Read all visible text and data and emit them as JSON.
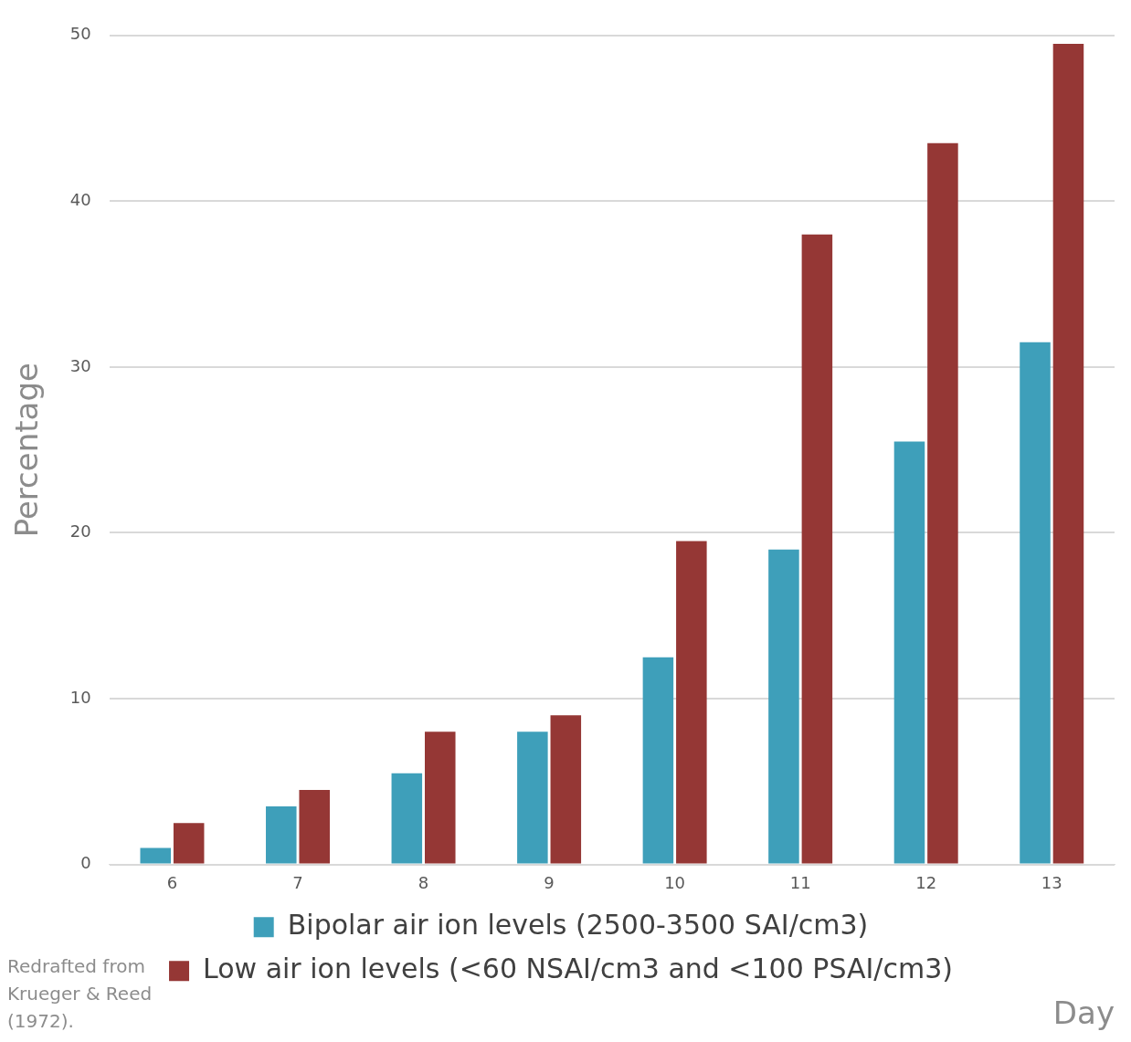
{
  "chart_data": {
    "type": "bar",
    "xlabel": "Day",
    "ylabel": "Percentage",
    "categories": [
      "6",
      "7",
      "8",
      "9",
      "10",
      "11",
      "12",
      "13"
    ],
    "series": [
      {
        "name": "Bipolar air ion levels (2500-3500 SAI/cm3)",
        "color": "#3e9fba",
        "values": [
          1,
          3.5,
          5.5,
          8,
          12.5,
          19,
          25.5,
          31.5
        ]
      },
      {
        "name": "Low air ion levels (<60 NSAI/cm3 and <100 PSAI/cm3)",
        "color": "#953735",
        "values": [
          2.5,
          4.5,
          8,
          9,
          19.5,
          38,
          43.5,
          49.5
        ]
      }
    ],
    "ylim": [
      0,
      50
    ],
    "yticks": [
      0,
      10,
      20,
      30,
      40,
      50
    ],
    "grid": "y",
    "legend": "bottom",
    "annotations": [
      "Redrafted from Krueger & Reed (1972)."
    ]
  }
}
